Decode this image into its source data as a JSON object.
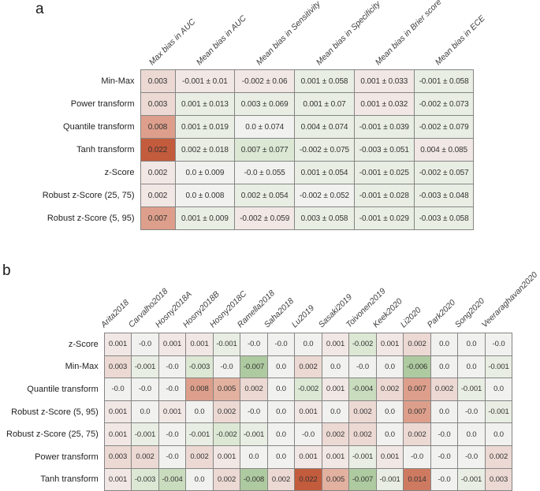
{
  "palette": {
    "r4": "#c35b3d",
    "r3": "#ce7a61",
    "r2": "#dd9f8b",
    "r2l": "#e2b1a0",
    "r1": "#ecd9d3",
    "r0": "#f1e7e4",
    "w": "#f1f1ef",
    "g0": "#e8eee3",
    "g1": "#dce8d4",
    "g2": "#cadcbe",
    "g3": "#aecaa0"
  },
  "chart_data": [
    {
      "type": "heatmap",
      "panel": "a",
      "columns": [
        "Max bias in AUC",
        "Mean bias in AUC",
        "Mean bias in Sensitivity",
        "Mean bias in Specificity",
        "Mean bias in Brier score",
        "Mean bias in ECE"
      ],
      "rows": [
        "Min-Max",
        "Power transform",
        "Quantile transform",
        "Tanh transform",
        "z-Score",
        "Robust z-Score (25, 75)",
        "Robust z-Score (5, 95)"
      ],
      "values": [
        [
          "0.003",
          "-0.001 ± 0.01",
          "-0.002 ± 0.06",
          "0.001 ± 0.058",
          "0.001 ± 0.033",
          "-0.001 ± 0.058"
        ],
        [
          "0.003",
          "0.001 ± 0.013",
          "0.003 ± 0.069",
          "0.001 ± 0.07",
          "0.001 ± 0.032",
          "-0.002 ± 0.073"
        ],
        [
          "0.008",
          "0.001 ± 0.019",
          "0.0 ± 0.074",
          "0.004 ± 0.074",
          "-0.001 ± 0.039",
          "-0.002 ± 0.079"
        ],
        [
          "0.022",
          "0.002 ± 0.018",
          "0.007 ± 0.077",
          "-0.002 ± 0.075",
          "-0.003 ± 0.051",
          "0.004 ± 0.085"
        ],
        [
          "0.002",
          "0.0 ± 0.009",
          "-0.0 ± 0.055",
          "0.001 ± 0.054",
          "-0.001 ± 0.025",
          "-0.002 ± 0.057"
        ],
        [
          "0.002",
          "0.0 ± 0.008",
          "0.002 ± 0.054",
          "-0.002 ± 0.052",
          "-0.001 ± 0.028",
          "-0.003 ± 0.048"
        ],
        [
          "0.007",
          "0.001 ± 0.009",
          "-0.002 ± 0.059",
          "0.003 ± 0.058",
          "-0.001 ± 0.029",
          "-0.003 ± 0.058"
        ]
      ],
      "cell_tones": [
        [
          "r1",
          "r0",
          "r0",
          "g0",
          "r0",
          "g0"
        ],
        [
          "r1",
          "g0",
          "g0",
          "g0",
          "r0",
          "g0"
        ],
        [
          "r2",
          "g0",
          "w",
          "g0",
          "g0",
          "g0"
        ],
        [
          "r4",
          "g0",
          "g1",
          "g0",
          "g0",
          "r0"
        ],
        [
          "r0",
          "w",
          "w",
          "g0",
          "g0",
          "g0"
        ],
        [
          "r0",
          "w",
          "g0",
          "w",
          "g0",
          "g0"
        ],
        [
          "r2",
          "g0",
          "r0",
          "g0",
          "g0",
          "g0"
        ]
      ]
    },
    {
      "type": "heatmap",
      "panel": "b",
      "columns": [
        "Arita2018",
        "Carvalho2018",
        "Hosny2018A",
        "Hosny2018B",
        "Hosny2018C",
        "Ramella2018",
        "Saha2018",
        "Lu2019",
        "Sasaki2019",
        "Toivonen2019",
        "Keek2020",
        "Li2020",
        "Park2020",
        "Song2020",
        "Veeraraghavan2020"
      ],
      "rows": [
        "z-Score",
        "Min-Max",
        "Quantile transform",
        "Robust z-Score (5, 95)",
        "Robust z-Score (25, 75)",
        "Power transform",
        "Tanh transform"
      ],
      "values": [
        [
          "0.001",
          "-0.0",
          "0.001",
          "0.001",
          "-0.001",
          "-0.0",
          "-0.0",
          "0.0",
          "0.001",
          "-0.002",
          "0.001",
          "0.002",
          "0.0",
          "0.0",
          "-0.0"
        ],
        [
          "0.003",
          "-0.001",
          "-0.0",
          "-0.003",
          "-0.0",
          "-0.007",
          "0.0",
          "0.002",
          "0.0",
          "-0.0",
          "0.0",
          "-0.006",
          "0.0",
          "0.0",
          "-0.001"
        ],
        [
          "-0.0",
          "-0.0",
          "-0.0",
          "0.008",
          "0.005",
          "0.002",
          "0.0",
          "-0.002",
          "0.001",
          "-0.004",
          "0.002",
          "0.007",
          "0.002",
          "-0.001",
          "0.0"
        ],
        [
          "0.001",
          "0.0",
          "0.001",
          "0.0",
          "0.002",
          "-0.0",
          "0.0",
          "0.001",
          "0.0",
          "0.002",
          "0.0",
          "0.007",
          "0.0",
          "-0.0",
          "-0.001"
        ],
        [
          "0.001",
          "-0.001",
          "-0.0",
          "-0.001",
          "-0.002",
          "-0.001",
          "0.0",
          "-0.0",
          "0.002",
          "0.002",
          "0.0",
          "0.002",
          "-0.0",
          "0.0",
          "0.0"
        ],
        [
          "0.003",
          "0.002",
          "-0.0",
          "0.002",
          "0.001",
          "0.0",
          "0.0",
          "0.001",
          "0.001",
          "-0.001",
          "0.001",
          "-0.0",
          "-0.0",
          "-0.0",
          "0.002"
        ],
        [
          "0.001",
          "-0.003",
          "-0.004",
          "0.0",
          "0.002",
          "-0.008",
          "0.002",
          "0.022",
          "0.005",
          "-0.007",
          "-0.001",
          "0.014",
          "-0.0",
          "-0.001",
          "0.003"
        ]
      ],
      "cell_tones": [
        [
          "r0",
          "w",
          "r0",
          "r0",
          "g0",
          "w",
          "w",
          "w",
          "r0",
          "g1",
          "r0",
          "r1",
          "w",
          "w",
          "w"
        ],
        [
          "r1",
          "g0",
          "w",
          "g1",
          "w",
          "g3",
          "w",
          "r1",
          "w",
          "w",
          "w",
          "g3",
          "w",
          "w",
          "g0"
        ],
        [
          "w",
          "w",
          "w",
          "r2",
          "r2l",
          "r1",
          "w",
          "g1",
          "r0",
          "g2",
          "r1",
          "r2",
          "r1",
          "g0",
          "w"
        ],
        [
          "r0",
          "w",
          "r0",
          "w",
          "r1",
          "w",
          "w",
          "r0",
          "w",
          "r1",
          "w",
          "r2",
          "w",
          "w",
          "g0"
        ],
        [
          "r0",
          "g0",
          "w",
          "g0",
          "g1",
          "g0",
          "w",
          "w",
          "r1",
          "r1",
          "w",
          "r1",
          "w",
          "w",
          "w"
        ],
        [
          "r1",
          "r1",
          "w",
          "r1",
          "r0",
          "w",
          "w",
          "r0",
          "r0",
          "g0",
          "r0",
          "w",
          "w",
          "w",
          "r1"
        ],
        [
          "r0",
          "g1",
          "g2",
          "w",
          "r1",
          "g3",
          "r1",
          "r4",
          "r2l",
          "g3",
          "g0",
          "r3",
          "w",
          "g0",
          "r1"
        ]
      ]
    }
  ]
}
